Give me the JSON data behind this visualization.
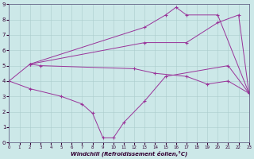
{
  "xlabel": "Windchill (Refroidissement éolien,°C)",
  "bg_color": "#cce8e8",
  "line_color": "#993399",
  "xlim": [
    0,
    23
  ],
  "ylim": [
    0,
    9
  ],
  "xticks": [
    0,
    1,
    2,
    3,
    4,
    5,
    6,
    7,
    8,
    9,
    10,
    11,
    12,
    13,
    14,
    15,
    16,
    17,
    18,
    19,
    20,
    21,
    22,
    23
  ],
  "yticks": [
    0,
    1,
    2,
    3,
    4,
    5,
    6,
    7,
    8,
    9
  ],
  "lines": [
    {
      "x": [
        0,
        2,
        13,
        15,
        16,
        17,
        20,
        23
      ],
      "y": [
        4,
        5.1,
        7.5,
        8.3,
        8.8,
        8.3,
        8.3,
        3.2
      ]
    },
    {
      "x": [
        2,
        13,
        17,
        20,
        22,
        23
      ],
      "y": [
        5.1,
        6.5,
        6.5,
        7.8,
        8.3,
        3.2
      ]
    },
    {
      "x": [
        0,
        2,
        5,
        7,
        8,
        9,
        10,
        11,
        13,
        15,
        21,
        23
      ],
      "y": [
        4,
        3.5,
        3.0,
        2.5,
        1.9,
        0.3,
        0.3,
        1.3,
        2.7,
        4.3,
        5.0,
        3.2
      ]
    },
    {
      "x": [
        2,
        3,
        12,
        14,
        17,
        19,
        21,
        23
      ],
      "y": [
        5.1,
        5.0,
        4.8,
        4.5,
        4.3,
        3.8,
        4.0,
        3.2
      ]
    }
  ]
}
